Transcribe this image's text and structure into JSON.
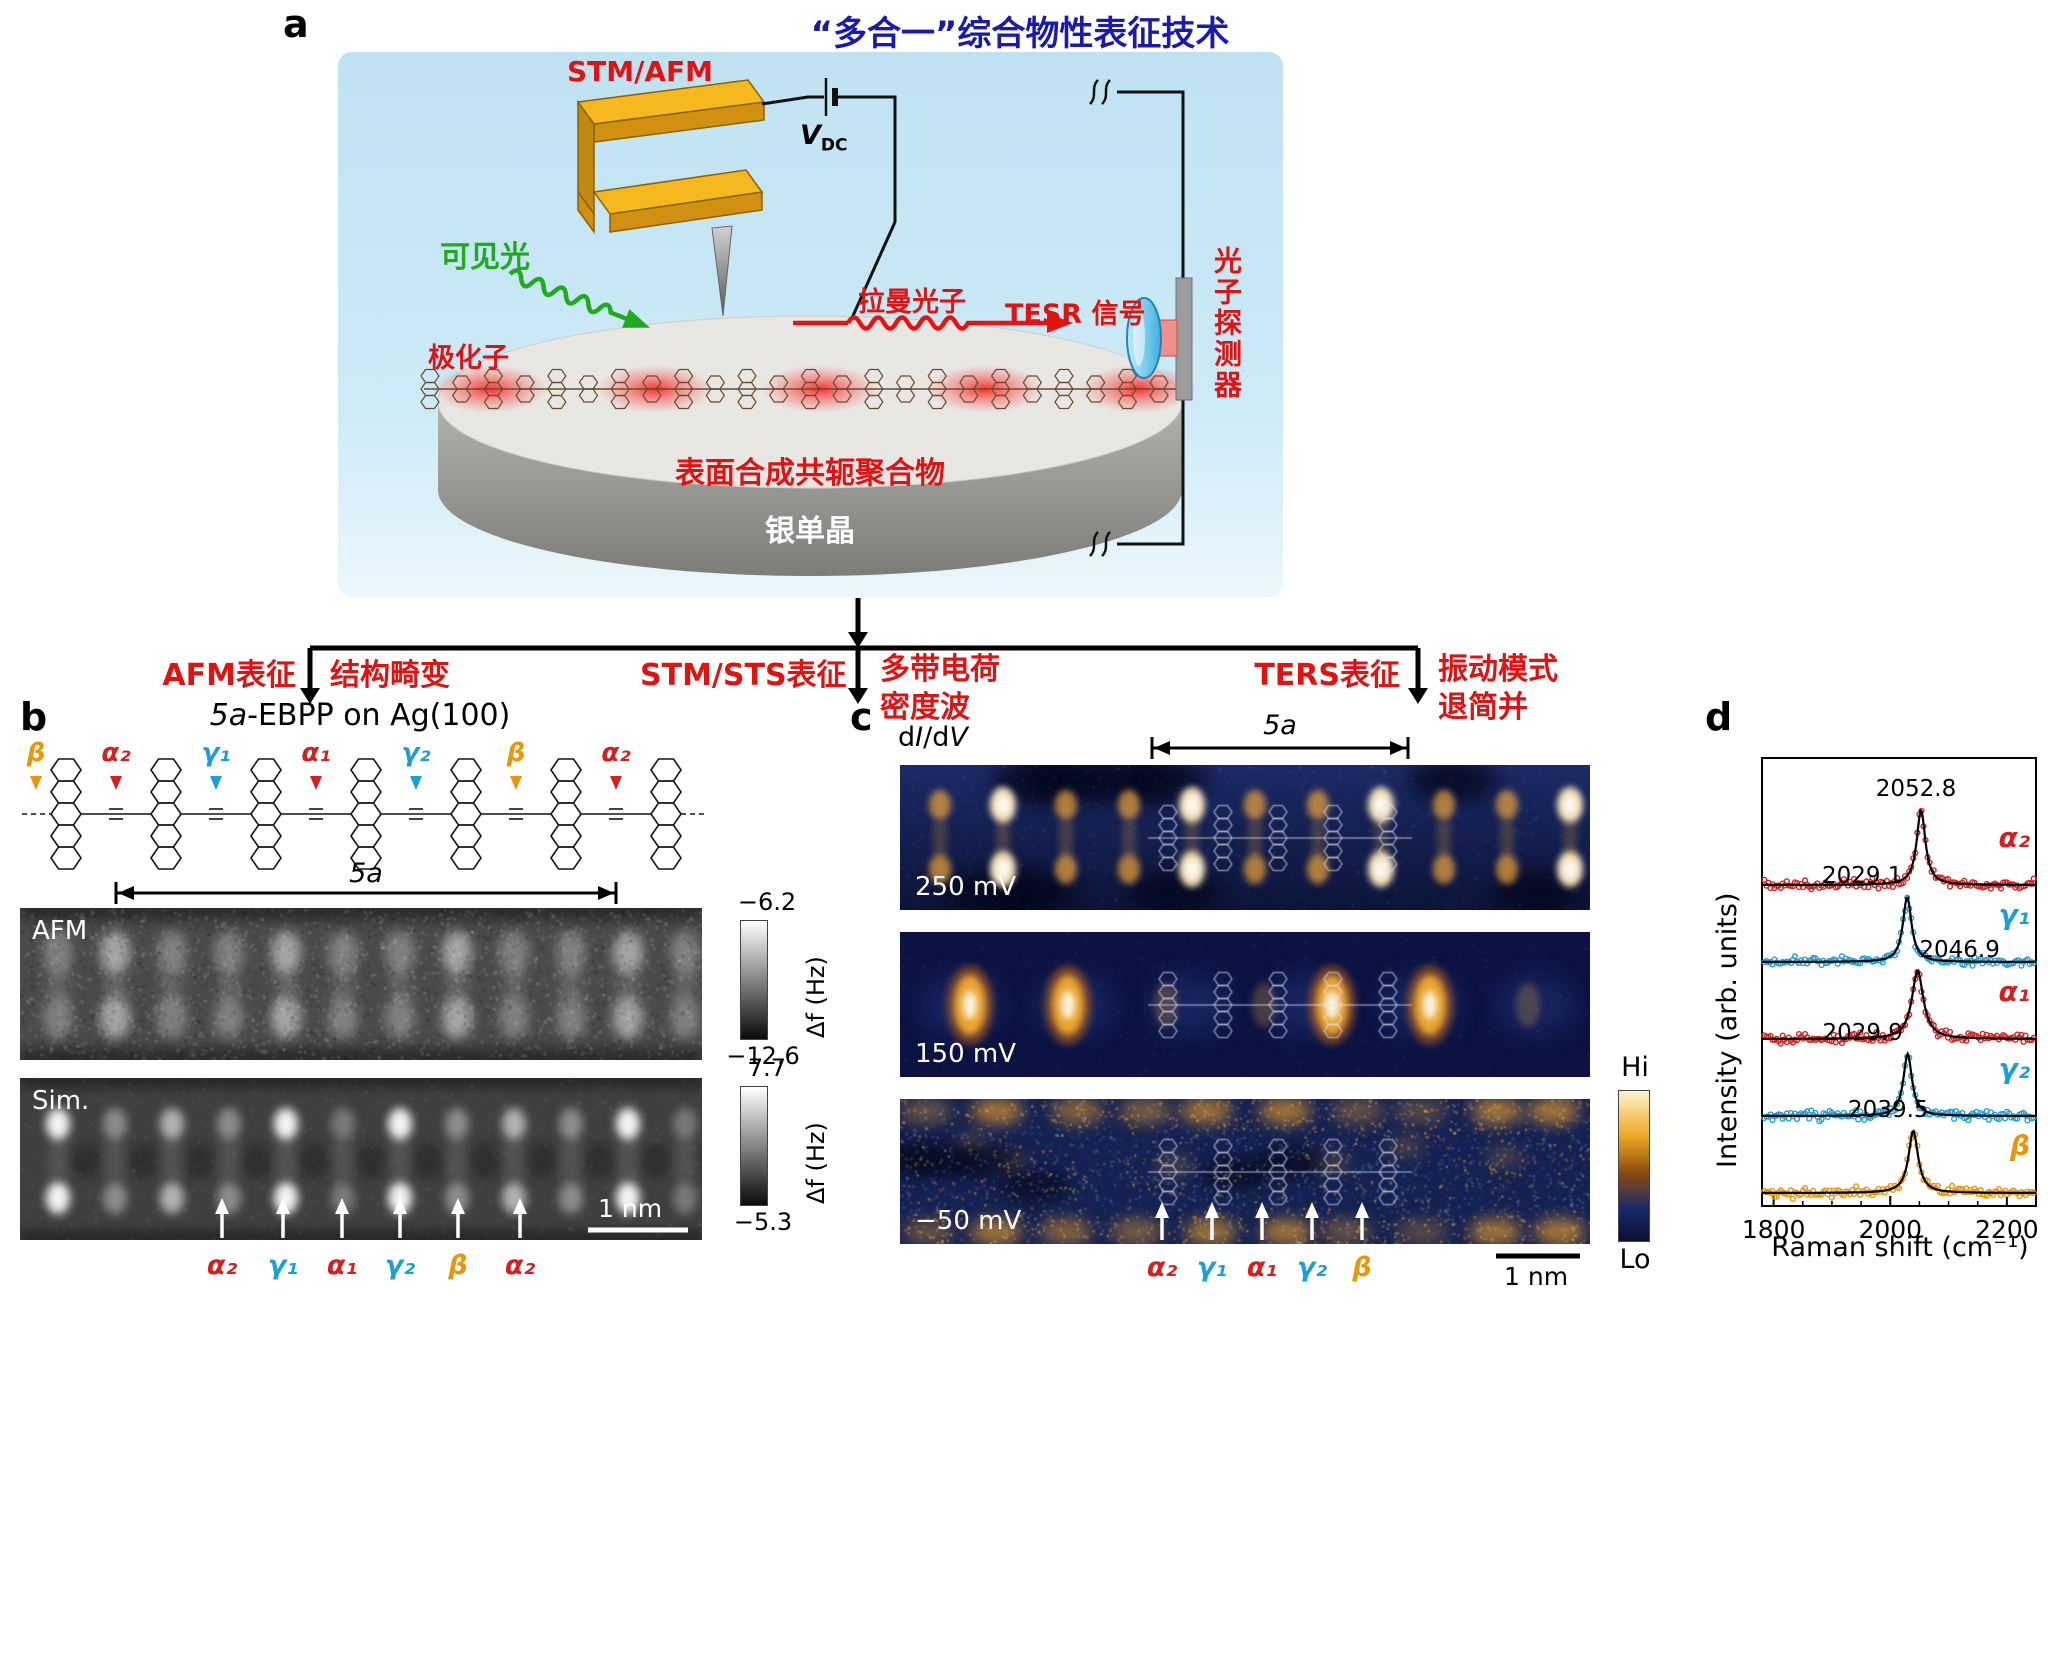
{
  "colors": {
    "title_blue": "#1a1aad",
    "accent_red": "#e01212",
    "green": "#1faa1f",
    "alpha_red": "#d42020",
    "gamma_blue": "#1e9fd4",
    "beta_orange": "#e8960a",
    "gold": "#e8a818"
  },
  "panels": {
    "a": "a",
    "b": "b",
    "c": "c",
    "d": "d"
  },
  "panel_a": {
    "title": "“多合一”综合物性表征技术",
    "stm_afm": "STM/AFM",
    "vdc": "V",
    "vdc_sub": "DC",
    "visible_light": "可见光",
    "polaron": "极化子",
    "raman_photon": "拉曼光子",
    "tesr_signal": "TESR 信号",
    "photon_detector": "光子探测器",
    "polymer": "表面合成共轭聚合物",
    "silver_crystal": "银单晶"
  },
  "flow": {
    "afm_label": "AFM表征",
    "afm_result": "结构畸变",
    "stm_label": "STM/STS表征",
    "stm_result_1": "多带电荷",
    "stm_result_2": "密度波",
    "ters_label": "TERS表征",
    "ters_result_1": "振动模式",
    "ters_result_2": "退简并"
  },
  "panel_b": {
    "title_mol": "5a",
    "title_rest": "-EBPP on Ag(100)",
    "top_markers": [
      {
        "text": "β",
        "color": "#e8960a"
      },
      {
        "text": "α₂",
        "color": "#d42020"
      },
      {
        "text": "γ₁",
        "color": "#1e9fd4"
      },
      {
        "text": "α₁",
        "color": "#d42020"
      },
      {
        "text": "γ₂",
        "color": "#1e9fd4"
      },
      {
        "text": "β",
        "color": "#e8960a"
      },
      {
        "text": "α₂",
        "color": "#d42020"
      }
    ],
    "span_label": "5a",
    "afm_tag": "AFM",
    "afm_colorbar_top": "−6.2",
    "afm_colorbar_bottom": "−12.6",
    "afm_colorbar_unit": "Δf (Hz)",
    "sim_tag": "Sim.",
    "sim_colorbar_top": "7.7",
    "sim_colorbar_bottom": "−5.3",
    "sim_colorbar_unit": "Δf (Hz)",
    "scale_bar": "1 nm",
    "bottom_markers": [
      {
        "text": "α₂",
        "color": "#d42020"
      },
      {
        "text": "γ₁",
        "color": "#1e9fd4"
      },
      {
        "text": "α₁",
        "color": "#d42020"
      },
      {
        "text": "γ₂",
        "color": "#1e9fd4"
      },
      {
        "text": "β",
        "color": "#e8960a"
      },
      {
        "text": "α₂",
        "color": "#d42020"
      }
    ]
  },
  "panel_c": {
    "didv_d1": "d",
    "didv_i": "I",
    "didv_d2": "/d",
    "didv_v": "V",
    "span_label": "5a",
    "bias_labels": [
      "250 mV",
      "150 mV",
      "−50 mV"
    ],
    "colorbar_hi": "Hi",
    "colorbar_lo": "Lo",
    "scale_bar": "1 nm",
    "bottom_markers": [
      {
        "text": "α₂",
        "color": "#d42020"
      },
      {
        "text": "γ₁",
        "color": "#1e9fd4"
      },
      {
        "text": "α₁",
        "color": "#d42020"
      },
      {
        "text": "γ₂",
        "color": "#1e9fd4"
      },
      {
        "text": "β",
        "color": "#e8960a"
      }
    ]
  },
  "chart_data": {
    "type": "line",
    "title": "",
    "xlabel": "Raman shift (cm⁻¹)",
    "ylabel": "Intensity (arb. units)",
    "xlim": [
      1780,
      2250
    ],
    "xticks": [
      1800,
      2000,
      2200
    ],
    "grid": false,
    "legend_position": "right-of-each-curve",
    "series": [
      {
        "name": "α₂",
        "peak_center": 2052.8,
        "peak_label": "2052.8",
        "color": "#d42020",
        "hwhm": 9
      },
      {
        "name": "γ₁",
        "peak_center": 2029.1,
        "peak_label": "2029.1",
        "color": "#1e9fd4",
        "hwhm": 9
      },
      {
        "name": "α₁",
        "peak_center": 2046.9,
        "peak_label": "2046.9",
        "color": "#d42020",
        "hwhm": 12
      },
      {
        "name": "γ₂",
        "peak_center": 2029.9,
        "peak_label": "2029.9",
        "color": "#1e9fd4",
        "hwhm": 9
      },
      {
        "name": "β",
        "peak_center": 2039.5,
        "peak_label": "2039.5",
        "color": "#e8960a",
        "hwhm": 10
      }
    ]
  }
}
